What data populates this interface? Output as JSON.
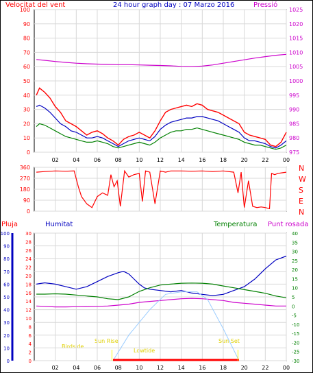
{
  "chart_data": [
    {
      "type": "line",
      "title": "24 hour graph day : 07 Marzo 2016",
      "left_axis_label": "Velocitat del vent",
      "right_axis_label": "Pressió",
      "left_ticks": [
        0,
        10,
        20,
        30,
        40,
        50,
        60,
        70,
        80,
        90,
        100
      ],
      "right_ticks": [
        975,
        980,
        985,
        990,
        995,
        1000,
        1005,
        1010,
        1015,
        1020,
        1025
      ],
      "x_ticks": [
        "02",
        "04",
        "06",
        "08",
        "10",
        "12",
        "14",
        "16",
        "18",
        "20",
        "22",
        "00"
      ],
      "ylim_left": [
        0,
        100
      ],
      "ylim_right": [
        975,
        1025
      ],
      "grid": true,
      "colors": {
        "wind_gust": "#ff0000",
        "wind_avg": "#0000c0",
        "wind": "#008000",
        "pressure": "#cc00cc",
        "grid": "#d8d8d8"
      },
      "series": [
        {
          "key": "wind_gust",
          "x": [
            0.2,
            0.5,
            1,
            1.5,
            2,
            2.5,
            3,
            3.5,
            4,
            4.5,
            5,
            5.5,
            6,
            6.5,
            7,
            7.5,
            8,
            8.5,
            9,
            9.5,
            10,
            10.5,
            11,
            11.5,
            12,
            12.5,
            13,
            13.5,
            14,
            14.5,
            15,
            15.5,
            16,
            16.5,
            17,
            17.5,
            18,
            18.5,
            19,
            19.5,
            20,
            20.5,
            21,
            21.5,
            22,
            22.5,
            23,
            23.5,
            24
          ],
          "values": [
            40,
            45,
            42,
            38,
            32,
            28,
            22,
            20,
            18,
            15,
            12,
            14,
            15,
            13,
            10,
            8,
            5,
            9,
            11,
            12,
            14,
            12,
            10,
            15,
            22,
            28,
            30,
            31,
            32,
            33,
            32,
            34,
            33,
            30,
            29,
            28,
            26,
            24,
            22,
            20,
            14,
            12,
            11,
            10,
            9,
            5,
            4,
            7,
            14
          ]
        },
        {
          "key": "wind_avg",
          "x": [
            0.2,
            0.5,
            1,
            1.5,
            2,
            2.5,
            3,
            3.5,
            4,
            4.5,
            5,
            5.5,
            6,
            6.5,
            7,
            7.5,
            8,
            8.5,
            9,
            9.5,
            10,
            10.5,
            11,
            11.5,
            12,
            12.5,
            13,
            13.5,
            14,
            14.5,
            15,
            15.5,
            16,
            16.5,
            17,
            17.5,
            18,
            18.5,
            19,
            19.5,
            20,
            20.5,
            21,
            21.5,
            22,
            22.5,
            23,
            23.5,
            24
          ],
          "values": [
            32,
            33,
            31,
            28,
            24,
            20,
            18,
            15,
            14,
            12,
            10,
            10,
            11,
            10,
            8,
            6,
            4,
            6,
            8,
            9,
            10,
            9,
            8,
            11,
            16,
            19,
            21,
            22,
            23,
            24,
            24,
            25,
            25,
            24,
            23,
            22,
            20,
            18,
            16,
            14,
            10,
            8,
            8,
            7,
            6,
            4,
            3,
            5,
            8
          ]
        },
        {
          "key": "wind",
          "x": [
            0.2,
            0.5,
            1,
            1.5,
            2,
            2.5,
            3,
            3.5,
            4,
            4.5,
            5,
            5.5,
            6,
            6.5,
            7,
            7.5,
            8,
            8.5,
            9,
            9.5,
            10,
            10.5,
            11,
            11.5,
            12,
            12.5,
            13,
            13.5,
            14,
            14.5,
            15,
            15.5,
            16,
            16.5,
            17,
            17.5,
            18,
            18.5,
            19,
            19.5,
            20,
            20.5,
            21,
            21.5,
            22,
            22.5,
            23,
            23.5,
            24
          ],
          "values": [
            18,
            20,
            19,
            17,
            15,
            13,
            11,
            10,
            9,
            8,
            7,
            7,
            8,
            7,
            6,
            4,
            3,
            4,
            5,
            6,
            7,
            6,
            5,
            7,
            10,
            12,
            14,
            15,
            15,
            16,
            16,
            17,
            16,
            15,
            14,
            13,
            12,
            11,
            10,
            9,
            7,
            6,
            5,
            5,
            4,
            3,
            2,
            3,
            5
          ]
        },
        {
          "key": "pressure",
          "x": [
            0.2,
            1,
            2,
            3,
            4,
            5,
            6,
            7,
            8,
            9,
            10,
            11,
            12,
            13,
            14,
            15,
            16,
            17,
            18,
            19,
            20,
            21,
            22,
            23,
            24
          ],
          "values": [
            1007.5,
            1007.2,
            1006.8,
            1006.5,
            1006.2,
            1006.0,
            1005.9,
            1005.8,
            1005.7,
            1005.7,
            1005.6,
            1005.5,
            1005.4,
            1005.3,
            1005.1,
            1005.0,
            1005.2,
            1005.6,
            1006.2,
            1006.8,
            1007.4,
            1008.0,
            1008.5,
            1009.0,
            1009.3
          ]
        }
      ]
    },
    {
      "type": "line",
      "title": "",
      "right_axis_labels": [
        "N",
        "W",
        "S",
        "E",
        "N"
      ],
      "left_ticks": [
        0,
        90,
        180,
        270,
        360
      ],
      "x_ticks": [],
      "ylim": [
        0,
        360
      ],
      "grid": true,
      "series": [
        {
          "key": "wind_dir",
          "x": [
            0.2,
            1,
            2,
            3,
            3.8,
            4.2,
            4.5,
            5,
            5.5,
            6,
            6.5,
            7,
            7.3,
            7.6,
            7.9,
            8.2,
            8.6,
            9,
            9.5,
            10,
            10.3,
            10.6,
            11,
            11.5,
            12,
            12.5,
            13,
            14,
            15,
            16,
            17,
            18,
            19,
            19.4,
            19.7,
            20,
            20.4,
            20.8,
            21.2,
            21.6,
            22,
            22.4,
            22.6,
            22.9,
            23.2,
            23.6,
            24
          ],
          "values": [
            320,
            325,
            330,
            328,
            330,
            200,
            120,
            60,
            30,
            120,
            150,
            130,
            300,
            200,
            250,
            40,
            330,
            280,
            300,
            310,
            80,
            330,
            320,
            60,
            330,
            320,
            330,
            330,
            328,
            330,
            325,
            330,
            320,
            150,
            320,
            30,
            250,
            40,
            30,
            35,
            30,
            20,
            310,
            300,
            310,
            315,
            320
          ]
        }
      ]
    },
    {
      "type": "line",
      "title": "",
      "labels": {
        "rain": "Pluja",
        "humidity": "Humitat",
        "temperature": "Temperatura",
        "dewpoint": "Punt rosada"
      },
      "rain_ticks": [
        0,
        2,
        4,
        6,
        8,
        10,
        12,
        14,
        16,
        18,
        20,
        22,
        24,
        26,
        28,
        30
      ],
      "humidity_ticks": [
        0,
        10,
        20,
        30,
        40,
        50,
        60,
        70,
        80,
        90,
        100
      ],
      "temp_ticks": [
        -30,
        -25,
        -20,
        -15,
        -10,
        -5,
        0,
        5,
        10,
        15,
        20,
        25,
        30,
        35,
        40
      ],
      "x_ticks": [
        "02",
        "04",
        "06",
        "08",
        "10",
        "12",
        "14",
        "16",
        "18",
        "20",
        "22",
        "00"
      ],
      "ylim_humidity": [
        0,
        100
      ],
      "ylim_temp": [
        -30,
        40
      ],
      "solar_labels": {
        "birdside": "Birdside",
        "sunrise": "Sun Rise",
        "lowtide": "Lowtide",
        "sunset": "Sun Set"
      },
      "colors": {
        "humidity": "#0000c0",
        "temperature": "#008000",
        "dewpoint": "#cc00cc",
        "solar": "#99ccff",
        "rain": "#ff0000",
        "markers": "#ffff00"
      },
      "series": [
        {
          "key": "humidity",
          "x": [
            0.2,
            1,
            2,
            3,
            4,
            5,
            6,
            7,
            8,
            8.5,
            9,
            9.5,
            10,
            10.5,
            11,
            12,
            13,
            14,
            15,
            16,
            17,
            18,
            19,
            20,
            21,
            22,
            23,
            24
          ],
          "values": [
            60,
            61,
            60,
            58,
            56,
            58,
            62,
            66,
            69,
            70,
            68,
            64,
            60,
            57,
            56,
            55,
            54,
            55,
            53,
            52,
            51,
            52,
            55,
            58,
            64,
            72,
            79,
            82
          ]
        },
        {
          "key": "temperature",
          "x": [
            0.2,
            1,
            2,
            3,
            4,
            5,
            6,
            7,
            8,
            9,
            10,
            11,
            12,
            13,
            14,
            15,
            16,
            17,
            18,
            19,
            20,
            21,
            22,
            23,
            24
          ],
          "values": [
            6.5,
            6.5,
            6.7,
            6.5,
            6,
            5.5,
            5,
            4,
            3.5,
            5,
            8,
            10,
            11.5,
            12,
            12.5,
            12.6,
            12.5,
            12,
            11,
            10,
            9,
            8,
            7,
            5.5,
            4.5
          ]
        },
        {
          "key": "dewpoint",
          "x": [
            0.2,
            1,
            2,
            3,
            4,
            5,
            6,
            7,
            8,
            9,
            10,
            11,
            12,
            13,
            14,
            15,
            16,
            17,
            18,
            19,
            20,
            21,
            22,
            23,
            24
          ],
          "values": [
            0,
            -0.2,
            -0.5,
            -0.5,
            -0.4,
            -0.3,
            -0.2,
            0,
            0.5,
            1,
            2,
            2.5,
            3,
            3.5,
            4,
            4.2,
            4,
            3.5,
            3,
            2,
            1.5,
            1,
            0.5,
            0,
            0
          ]
        },
        {
          "key": "solar",
          "x": [
            7.5,
            9,
            11,
            12.5,
            14,
            15.5,
            16.5,
            18,
            19.5
          ],
          "values": [
            0,
            20,
            40,
            52,
            54,
            54,
            48,
            25,
            0
          ]
        }
      ]
    }
  ]
}
